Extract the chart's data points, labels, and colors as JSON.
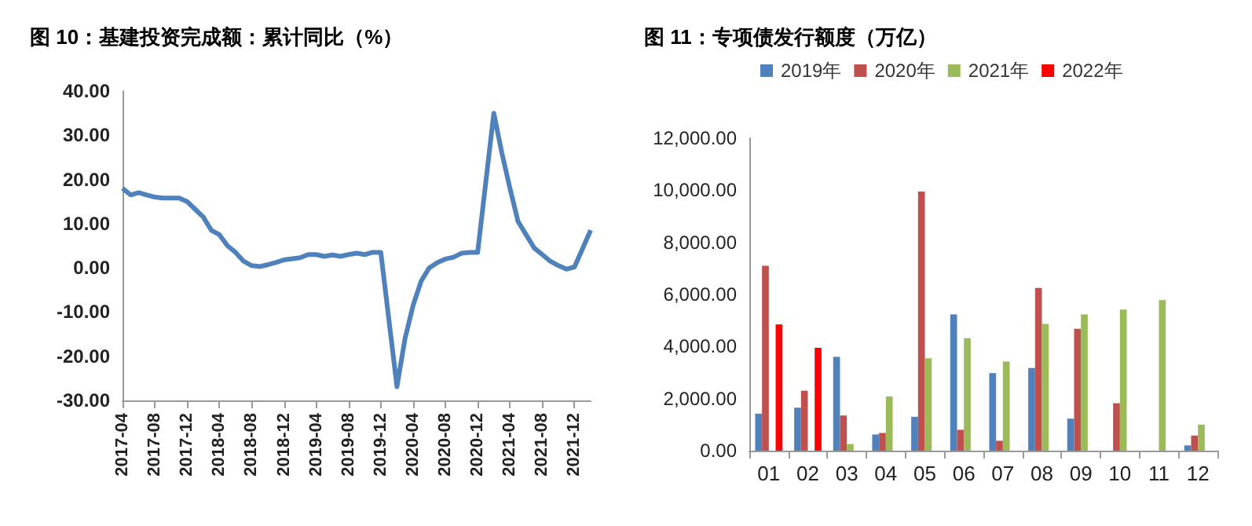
{
  "chart_data": [
    {
      "type": "line",
      "title": "图 10：基建投资完成额：累计同比（%）",
      "categories": [
        "2017-04",
        null,
        null,
        null,
        "2017-08",
        null,
        null,
        null,
        "2017-12",
        null,
        null,
        null,
        "2018-04",
        null,
        null,
        null,
        "2018-08",
        null,
        null,
        null,
        "2018-12",
        null,
        null,
        null,
        "2019-04",
        null,
        null,
        null,
        "2019-08",
        null,
        null,
        null,
        "2019-12",
        null,
        null,
        null,
        "2020-04",
        null,
        null,
        null,
        "2020-08",
        null,
        null,
        null,
        "2020-12",
        null,
        null,
        null,
        "2021-04",
        null,
        null,
        null,
        "2021-08",
        null,
        null,
        null,
        "2021-12",
        null,
        null
      ],
      "series": [
        {
          "color": "#4f81bd",
          "values": [
            18,
            16.5,
            17,
            16.5,
            16,
            15.8,
            15.8,
            15.8,
            15,
            null,
            11.5,
            8.5,
            7.5,
            5,
            3.5,
            1.5,
            0.5,
            0.3,
            0.7,
            1.2,
            1.8,
            null,
            2.3,
            3,
            3,
            2.6,
            2.9,
            2.6,
            3,
            3.3,
            3,
            3.5,
            3.5,
            null,
            -26.9,
            -16,
            -8.5,
            -3,
            0,
            1.2,
            2,
            2.4,
            3.3,
            3.5,
            3.5,
            null,
            35,
            26,
            18,
            10.5,
            7.5,
            4.5,
            3,
            1.5,
            0.5,
            -0.3,
            0.2,
            null,
            8.5
          ]
        }
      ],
      "ylim": [
        -30,
        40
      ],
      "yticks": [
        {
          "value": -30,
          "label": "-30.00"
        },
        {
          "value": -20,
          "label": "-20.00"
        },
        {
          "value": -10,
          "label": "-10.00"
        },
        {
          "value": 0,
          "label": "0.00"
        },
        {
          "value": 10,
          "label": "10.00"
        },
        {
          "value": 20,
          "label": "20.00"
        },
        {
          "value": 30,
          "label": "30.00"
        },
        {
          "value": 40,
          "label": "40.00"
        }
      ],
      "grid": false,
      "legend": false,
      "marker": "none"
    },
    {
      "type": "bar",
      "title": "图 11：专项债发行额度（万亿）",
      "categories": [
        "01",
        "02",
        "03",
        "04",
        "05",
        "06",
        "07",
        "08",
        "09",
        "10",
        "11",
        "12"
      ],
      "series": [
        {
          "name": "2019年",
          "color": "#4f81bd",
          "values": [
            1420,
            1650,
            3600,
            620,
            1300,
            5230,
            2980,
            3170,
            1230,
            null,
            null,
            200
          ]
        },
        {
          "name": "2020年",
          "color": "#c0504d",
          "values": [
            7100,
            2300,
            1350,
            680,
            9950,
            800,
            380,
            6250,
            4680,
            1820,
            null,
            580
          ]
        },
        {
          "name": "2021年",
          "color": "#9bbb59",
          "values": [
            null,
            null,
            250,
            2080,
            3550,
            4320,
            3420,
            4870,
            5230,
            5420,
            5780,
            1000
          ]
        },
        {
          "name": "2022年",
          "color": "#ff0000",
          "values": [
            4850,
            3950,
            null,
            null,
            null,
            null,
            null,
            null,
            null,
            null,
            null,
            null
          ]
        }
      ],
      "ylim": [
        0,
        12000
      ],
      "yticks": [
        {
          "value": 0,
          "label": "0.00"
        },
        {
          "value": 2000,
          "label": "2,000.00"
        },
        {
          "value": 4000,
          "label": "4,000.00"
        },
        {
          "value": 6000,
          "label": "6,000.00"
        },
        {
          "value": 8000,
          "label": "8,000.00"
        },
        {
          "value": 10000,
          "label": "10,000.00"
        },
        {
          "value": 12000,
          "label": "12,000.00"
        }
      ],
      "grid": false,
      "legend": "top"
    }
  ]
}
